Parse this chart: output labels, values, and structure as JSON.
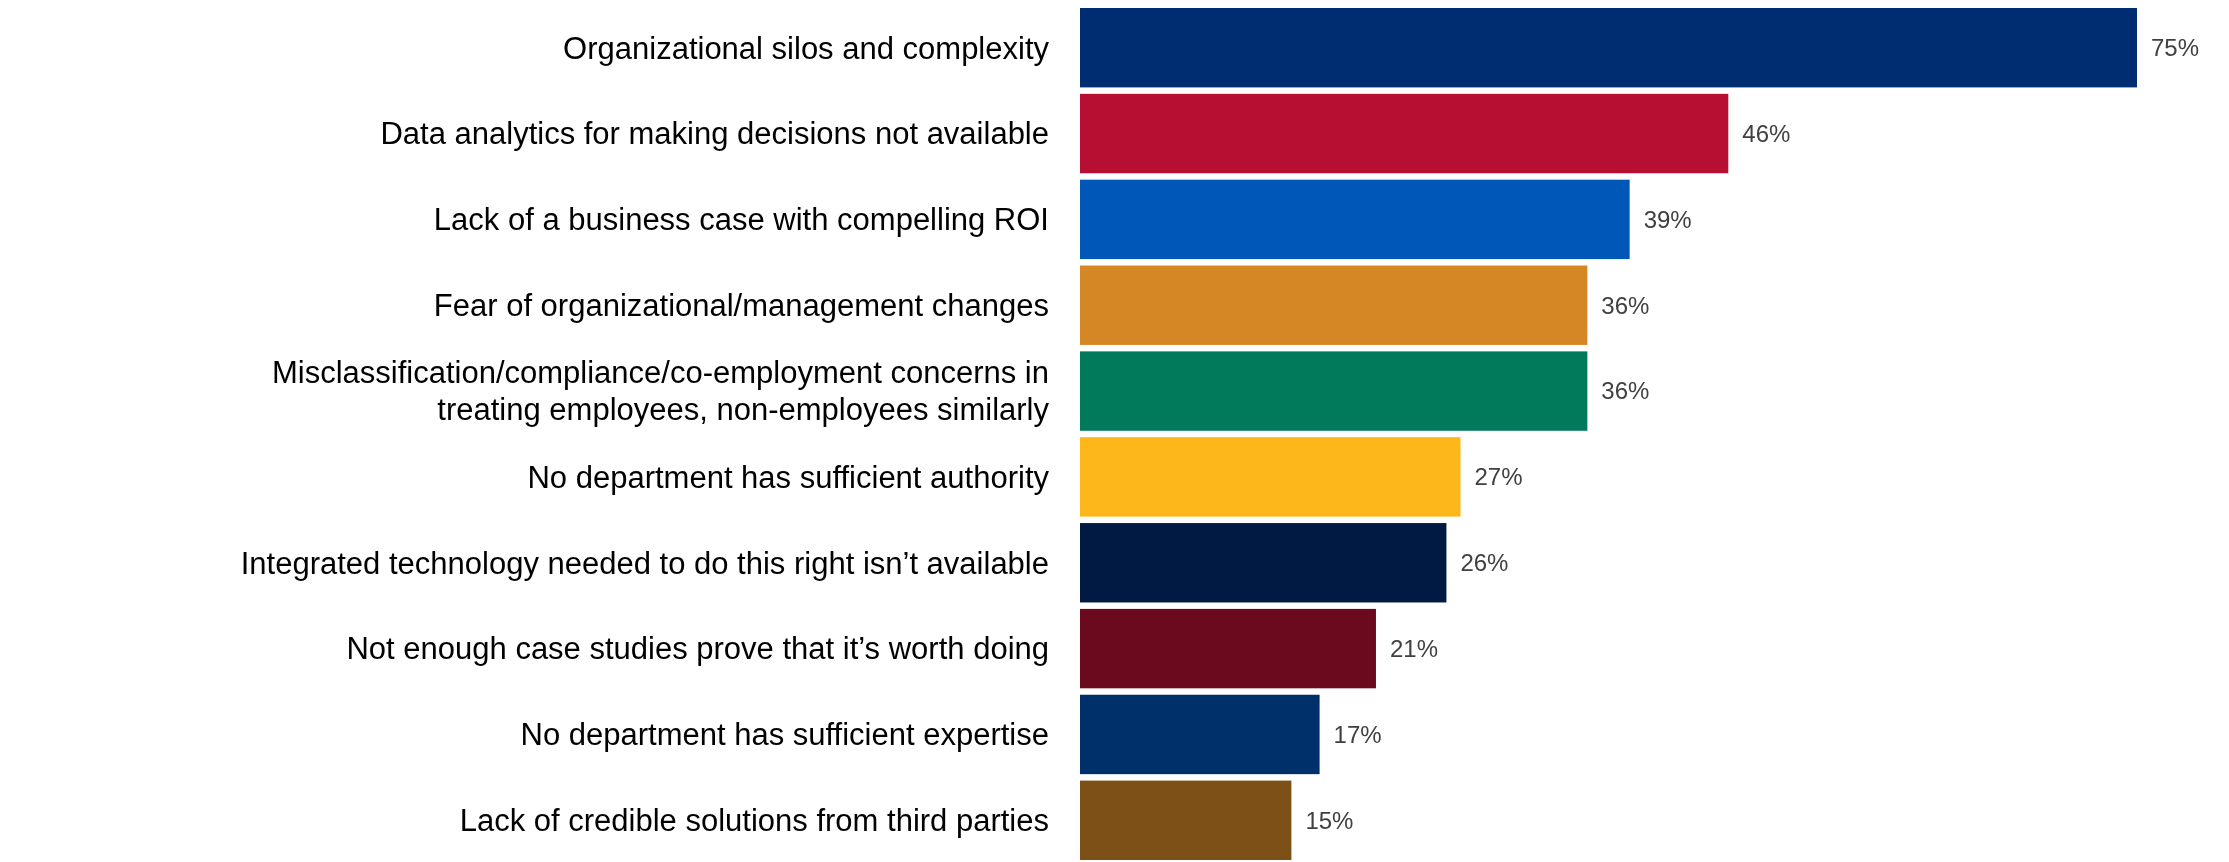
{
  "chart_data": {
    "type": "bar",
    "orientation": "horizontal",
    "categories": [
      "Organizational silos and complexity",
      "Data analytics for making decisions not available",
      "Lack of a business case with compelling ROI",
      "Fear of organizational/management changes",
      "Misclassification/compliance/co-employment concerns in treating employees, non-employees similarly",
      "No department has sufficient authority",
      "Integrated technology needed to do this right isn’t available",
      "Not enough case studies prove that it’s worth doing",
      "No department has sufficient expertise",
      "Lack of credible solutions from third parties"
    ],
    "values": [
      75,
      46,
      39,
      36,
      36,
      27,
      26,
      21,
      17,
      15
    ],
    "value_labels": [
      "75%",
      "46%",
      "39%",
      "36%",
      "36%",
      "27%",
      "26%",
      "21%",
      "17%",
      "15%"
    ],
    "colors": [
      "#002d72",
      "#b70f32",
      "#0057b8",
      "#d68725",
      "#007a5a",
      "#fdb71a",
      "#001a44",
      "#6b0a1e",
      "#003069",
      "#7d5017"
    ]
  }
}
